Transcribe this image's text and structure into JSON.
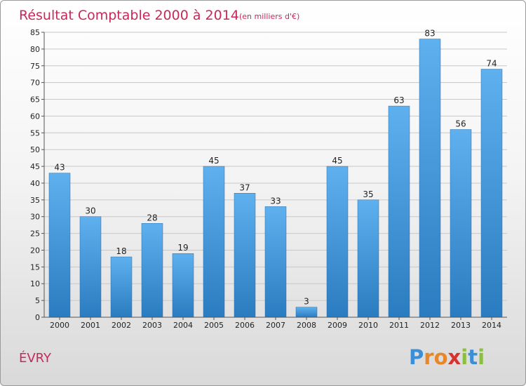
{
  "chart_data": {
    "type": "bar",
    "title": "Résultat Comptable 2000 à 2014",
    "subtitle": "(en milliers d'€)",
    "categories": [
      "2000",
      "2001",
      "2002",
      "2003",
      "2004",
      "2005",
      "2006",
      "2007",
      "2008",
      "2009",
      "2010",
      "2011",
      "2012",
      "2013",
      "2014"
    ],
    "values": [
      43,
      30,
      18,
      28,
      19,
      45,
      37,
      33,
      3,
      45,
      35,
      63,
      83,
      56,
      74
    ],
    "ylim": [
      0,
      85
    ],
    "yticks": [
      0,
      5,
      10,
      15,
      20,
      25,
      30,
      35,
      40,
      45,
      50,
      55,
      60,
      65,
      70,
      75,
      80,
      85
    ],
    "grid": true,
    "bar_color_top": "#5fb0ee",
    "bar_color_bottom": "#2a7cc0"
  },
  "footer": {
    "city": "ÉVRY",
    "brand_letters": [
      "P",
      "r",
      "o",
      "x",
      "i",
      "t",
      "i"
    ],
    "brand_colors": [
      "#3b8fd6",
      "#e8872a",
      "#e8872a",
      "#d8322e",
      "#8cbf3f",
      "#3b8fd6",
      "#8cbf3f"
    ]
  },
  "colors": {
    "accent": "#c8285a",
    "grid": "#c8c8c8"
  }
}
